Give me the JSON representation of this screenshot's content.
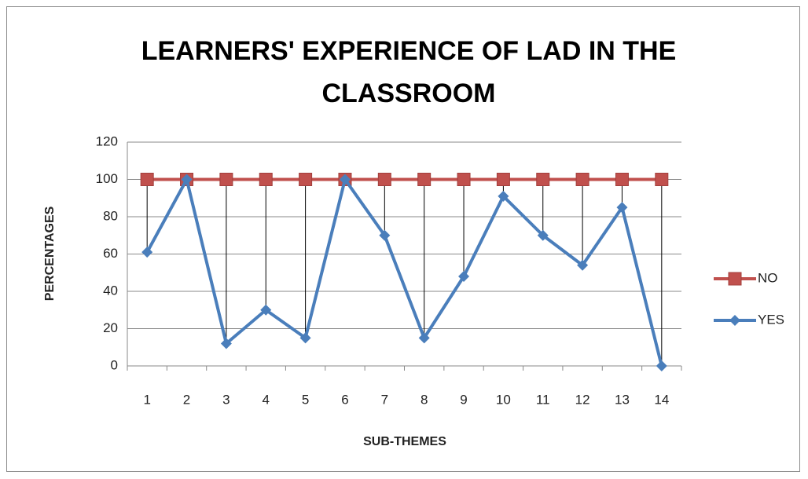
{
  "chart_data": {
    "type": "line",
    "title": "LEARNERS' EXPERIENCE OF LAD IN THE CLASSROOM",
    "x_label": "SUB-THEMES",
    "y_label": "PERCENTAGES",
    "categories": [
      "1",
      "2",
      "3",
      "4",
      "5",
      "6",
      "7",
      "8",
      "9",
      "10",
      "11",
      "12",
      "13",
      "14"
    ],
    "series": [
      {
        "name": "NO",
        "color": "#c0504d",
        "marker": "square",
        "values": [
          100,
          100,
          100,
          100,
          100,
          100,
          100,
          100,
          100,
          100,
          100,
          100,
          100,
          100
        ]
      },
      {
        "name": "YES",
        "color": "#4a7ebb",
        "marker": "diamond",
        "values": [
          61,
          100,
          12,
          30,
          15,
          100,
          70,
          15,
          48,
          91,
          70,
          54,
          85,
          0
        ]
      }
    ],
    "ylim": [
      0,
      120
    ],
    "yticks": [
      0,
      20,
      40,
      60,
      80,
      100,
      120
    ],
    "grid": true,
    "drop_lines": true,
    "legend": "right"
  }
}
